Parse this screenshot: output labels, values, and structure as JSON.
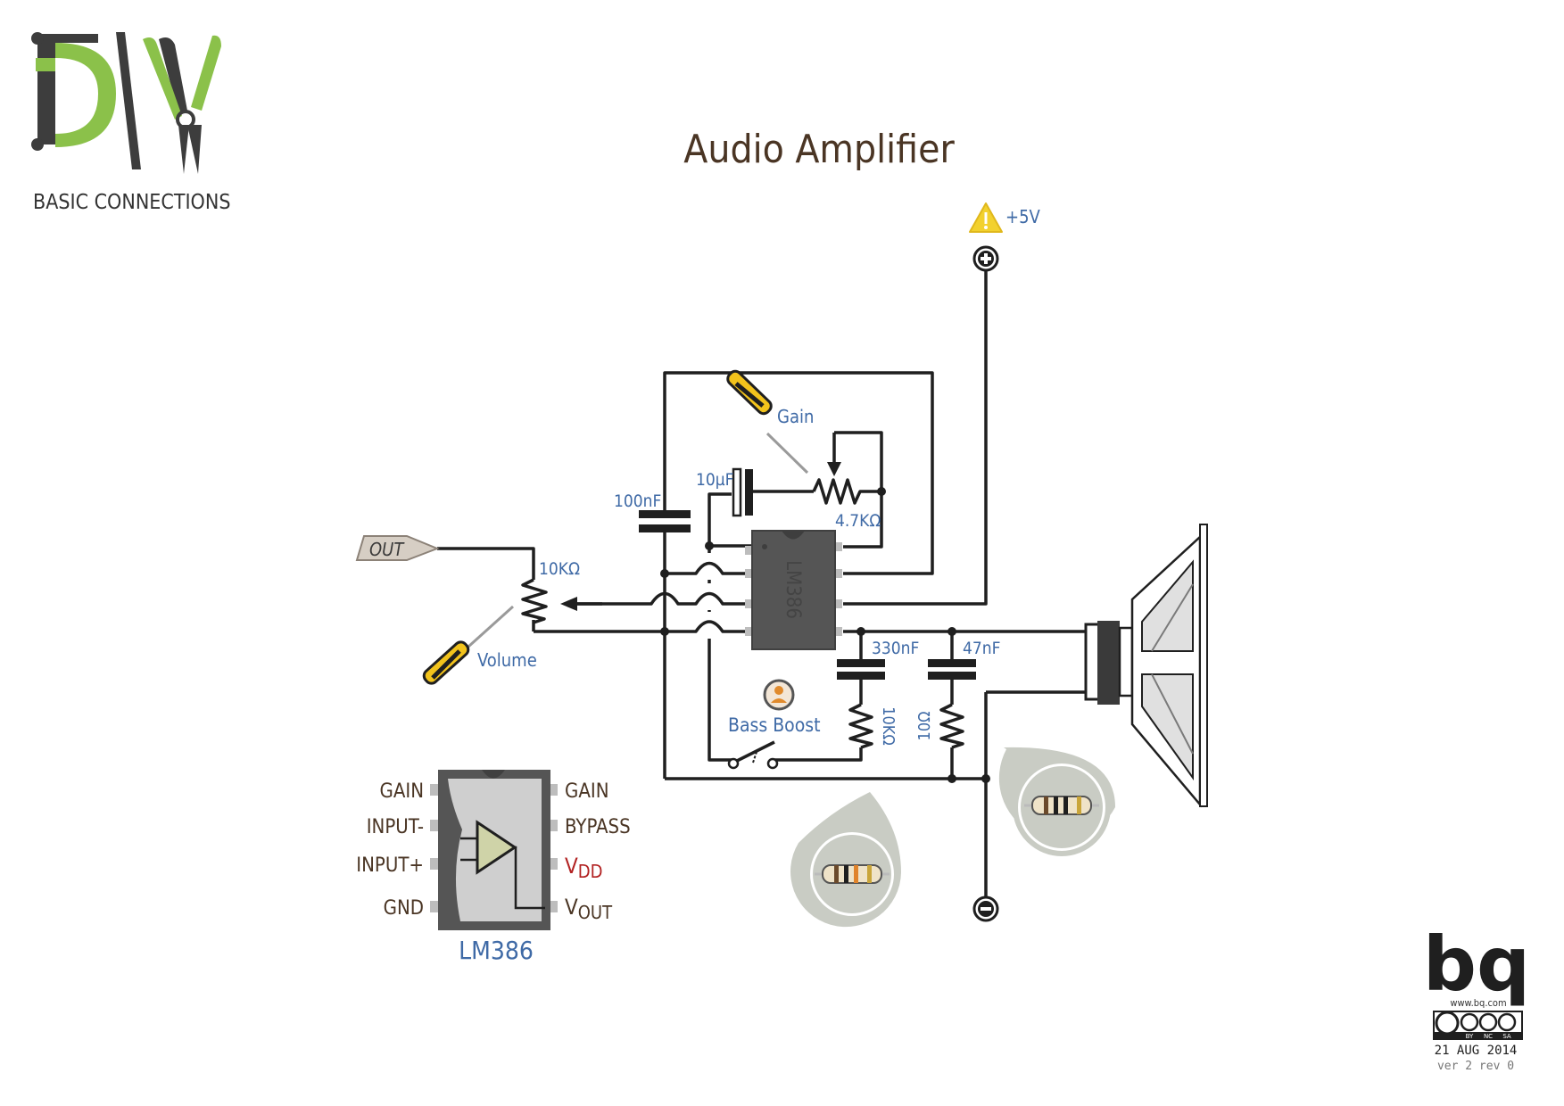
{
  "title": "Audio Amplifier",
  "logo": {
    "text": "DIY",
    "subtitle": "BASIC CONNECTIONS"
  },
  "supply": {
    "label": "+5V"
  },
  "components": {
    "cap_100nF": "100nF",
    "cap_10uF": "10µF",
    "pot_gain_value": "4.7KΩ",
    "gain_label": "Gain",
    "pot_volume_value": "10KΩ",
    "volume_label": "Volume",
    "out_label": "OUT",
    "ic_label": "LM386",
    "cap_330nF": "330nF",
    "cap_47nF": "47nF",
    "res_10k": "10KΩ",
    "res_10ohm": "10Ω",
    "bass_boost_label": "Bass Boost"
  },
  "pinout": {
    "chip_label": "LM386",
    "left_pins": [
      "GAIN",
      "INPUT-",
      "INPUT+",
      "GND"
    ],
    "right_pins": [
      {
        "main": "GAIN",
        "sub": ""
      },
      {
        "main": "BYPASS",
        "sub": ""
      },
      {
        "main": "V",
        "sub": "DD"
      },
      {
        "main": "V",
        "sub": "OUT"
      }
    ]
  },
  "footer": {
    "brand": "bq",
    "url": "www.bq.com",
    "license": [
      "BY",
      "NC",
      "SA"
    ],
    "date": "21 AUG 2014",
    "version": "ver 2 rev 0"
  },
  "colors": {
    "accent_green": "#8bc14a",
    "label_blue": "#3f6aa6",
    "title_brown": "#4a3524",
    "chip_gray": "#555555",
    "warning_yellow": "#f2d12e",
    "vdd_red": "#b22222"
  }
}
